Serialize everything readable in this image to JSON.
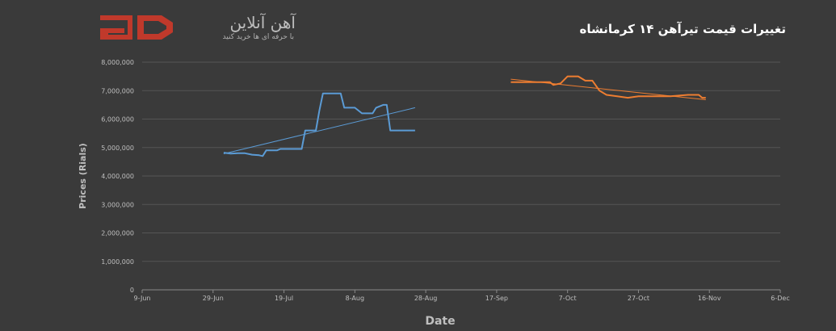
{
  "logo": {
    "name": "آهن آنلاین",
    "tagline": "با حرفه ای ها خرید کنید",
    "mark_color": "#c0392b"
  },
  "chart_data": {
    "type": "line",
    "title": "تغییرات قیمت تیرآهن ۱۴ کرمانشاه",
    "xlabel": "Date",
    "ylabel": "Prices (Rials)",
    "x_ticks": [
      "9-Jun",
      "29-Jun",
      "19-Jul",
      "8-Aug",
      "28-Aug",
      "17-Sep",
      "7-Oct",
      "27-Oct",
      "16-Nov",
      "6-Dec"
    ],
    "y_ticks": [
      "0",
      "1,000,000",
      "2,000,000",
      "3,000,000",
      "4,000,000",
      "5,000,000",
      "6,000,000",
      "7,000,000",
      "8,000,000"
    ],
    "ylim": [
      0,
      8000000
    ],
    "xlim": [
      "2023-06-09",
      "2023-12-06"
    ],
    "grid": true,
    "series": [
      {
        "color": "#5b9bd5",
        "points": [
          [
            "2023-07-02",
            4820000
          ],
          [
            "2023-07-04",
            4790000
          ],
          [
            "2023-07-06",
            4800000
          ],
          [
            "2023-07-08",
            4800000
          ],
          [
            "2023-07-10",
            4750000
          ],
          [
            "2023-07-12",
            4730000
          ],
          [
            "2023-07-13",
            4700000
          ],
          [
            "2023-07-14",
            4900000
          ],
          [
            "2023-07-17",
            4900000
          ],
          [
            "2023-07-18",
            4950000
          ],
          [
            "2023-07-21",
            4950000
          ],
          [
            "2023-07-24",
            4950000
          ],
          [
            "2023-07-25",
            5600000
          ],
          [
            "2023-07-27",
            5600000
          ],
          [
            "2023-07-28",
            5600000
          ],
          [
            "2023-07-29",
            6300000
          ],
          [
            "2023-07-30",
            6900000
          ],
          [
            "2023-08-01",
            6900000
          ],
          [
            "2023-08-04",
            6900000
          ],
          [
            "2023-08-05",
            6400000
          ],
          [
            "2023-08-08",
            6400000
          ],
          [
            "2023-08-10",
            6200000
          ],
          [
            "2023-08-13",
            6200000
          ],
          [
            "2023-08-14",
            6400000
          ],
          [
            "2023-08-16",
            6500000
          ],
          [
            "2023-08-17",
            6500000
          ],
          [
            "2023-08-18",
            5600000
          ],
          [
            "2023-08-20",
            5600000
          ],
          [
            "2023-08-25",
            5600000
          ]
        ]
      },
      {
        "color": "#5b9bd5",
        "trendline": true,
        "points": [
          [
            "2023-07-02",
            4780000
          ],
          [
            "2023-08-25",
            6400000
          ]
        ]
      },
      {
        "color": "#ed7d31",
        "points": [
          [
            "2023-09-21",
            7300000
          ],
          [
            "2023-09-27",
            7300000
          ],
          [
            "2023-10-02",
            7300000
          ],
          [
            "2023-10-03",
            7200000
          ],
          [
            "2023-10-05",
            7250000
          ],
          [
            "2023-10-07",
            7500000
          ],
          [
            "2023-10-10",
            7500000
          ],
          [
            "2023-10-12",
            7350000
          ],
          [
            "2023-10-14",
            7350000
          ],
          [
            "2023-10-16",
            7000000
          ],
          [
            "2023-10-18",
            6850000
          ],
          [
            "2023-10-21",
            6800000
          ],
          [
            "2023-10-24",
            6750000
          ],
          [
            "2023-10-27",
            6800000
          ],
          [
            "2023-10-30",
            6800000
          ],
          [
            "2023-11-05",
            6800000
          ],
          [
            "2023-11-10",
            6850000
          ],
          [
            "2023-11-13",
            6850000
          ],
          [
            "2023-11-14",
            6750000
          ],
          [
            "2023-11-15",
            6750000
          ]
        ]
      },
      {
        "color": "#ed7d31",
        "trendline": true,
        "points": [
          [
            "2023-09-21",
            7400000
          ],
          [
            "2023-11-15",
            6680000
          ]
        ]
      }
    ]
  }
}
